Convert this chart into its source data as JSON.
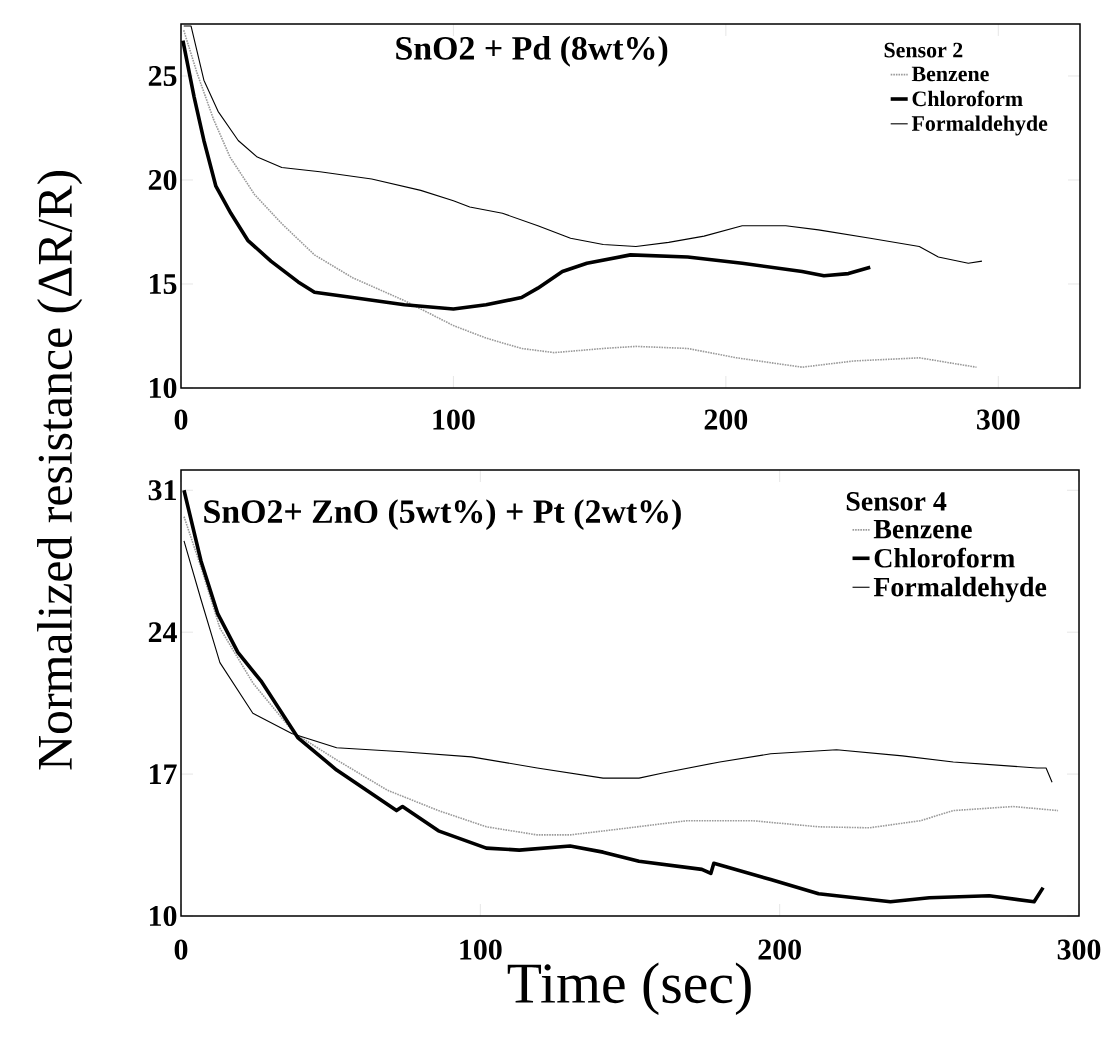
{
  "chart_data": [
    {
      "type": "line",
      "title": "SnO2 + Pd (8wt%)",
      "legend_title": "Sensor 2",
      "ylabel": "Normalized resistance (ΔR/R)",
      "legend": "top right",
      "xlim": [
        0,
        330
      ],
      "xticks": [
        0,
        100,
        200,
        300
      ],
      "ylim": [
        10,
        27.5
      ],
      "yticks": [
        10,
        15,
        20,
        25
      ],
      "series": [
        {
          "name": "Benzene",
          "color": "#9a9a9a",
          "line_style": "dotted",
          "x": [
            1,
            6,
            12,
            18,
            27,
            37,
            49,
            63,
            82,
            100,
            112,
            125,
            137,
            155,
            167,
            186,
            204,
            228,
            247,
            271,
            292
          ],
          "values": [
            27.2,
            25.1,
            22.9,
            21.1,
            19.3,
            17.9,
            16.4,
            15.3,
            14.2,
            13.0,
            12.4,
            11.9,
            11.7,
            11.9,
            12.0,
            11.9,
            11.45,
            11.0,
            11.3,
            11.45,
            11.0
          ]
        },
        {
          "name": "Chloroform",
          "color": "#000000",
          "line_style": "solid",
          "x": [
            0.7,
            4.8,
            8.4,
            12.8,
            18.3,
            24.5,
            33,
            43,
            49,
            63,
            82,
            100,
            112,
            125,
            131,
            140,
            149,
            165,
            186,
            206,
            228,
            236,
            245,
            253
          ],
          "values": [
            26.7,
            24.0,
            21.9,
            19.7,
            18.4,
            17.1,
            16.1,
            15.1,
            14.6,
            14.35,
            14.0,
            13.8,
            14.0,
            14.35,
            14.8,
            15.6,
            16.0,
            16.4,
            16.3,
            16.0,
            15.6,
            15.4,
            15.5,
            15.8
          ]
        },
        {
          "name": "Formaldehyde",
          "color": "#000000",
          "line_style": "solid",
          "x": [
            1,
            3.7,
            8.4,
            13.6,
            21,
            28,
            37,
            51,
            70,
            88,
            100,
            106,
            118,
            131,
            143,
            155,
            167,
            179,
            192,
            206,
            222,
            234,
            253,
            271,
            278,
            289,
            294
          ],
          "values": [
            27.4,
            27.4,
            24.8,
            23.3,
            21.9,
            21.1,
            20.6,
            20.4,
            20.05,
            19.5,
            19.0,
            18.7,
            18.4,
            17.8,
            17.2,
            16.9,
            16.8,
            17.0,
            17.3,
            17.8,
            17.8,
            17.6,
            17.2,
            16.8,
            16.3,
            16.0,
            16.1
          ]
        }
      ]
    },
    {
      "type": "line",
      "title": "SnO2+ ZnO (5wt%) + Pt (2wt%)",
      "legend_title": "Sensor 4",
      "xlabel": "Time (sec)",
      "legend": "top right",
      "xlim": [
        0,
        300
      ],
      "xticks": [
        0,
        100,
        200,
        300
      ],
      "ylim": [
        10,
        32
      ],
      "yticks": [
        10,
        17,
        24,
        31
      ],
      "series": [
        {
          "name": "Benzene",
          "color": "#9a9a9a",
          "line_style": "dotted",
          "x": [
            1,
            6.7,
            13,
            24,
            38,
            52,
            69,
            86,
            102,
            119,
            130,
            147,
            169,
            191,
            213,
            230,
            247,
            258,
            278,
            293
          ],
          "values": [
            29.7,
            27.2,
            24.2,
            21.5,
            19.0,
            17.7,
            16.2,
            15.2,
            14.4,
            14.0,
            14.0,
            14.3,
            14.7,
            14.7,
            14.4,
            14.35,
            14.7,
            15.2,
            15.4,
            15.2
          ]
        },
        {
          "name": "Chloroform",
          "color": "#000000",
          "line_style": "solid",
          "x": [
            1,
            6.7,
            12.3,
            19,
            26.7,
            39,
            52,
            63,
            72,
            74,
            86,
            102,
            113,
            130,
            141,
            153,
            174,
            177,
            178,
            197,
            213,
            237,
            250,
            270,
            285,
            288
          ],
          "values": [
            31.0,
            27.5,
            24.9,
            23.0,
            21.6,
            18.8,
            17.2,
            16.1,
            15.2,
            15.4,
            14.2,
            13.35,
            13.25,
            13.45,
            13.15,
            12.7,
            12.3,
            12.1,
            12.6,
            11.8,
            11.1,
            10.7,
            10.9,
            11.0,
            10.7,
            11.4
          ]
        },
        {
          "name": "Formaldehyde",
          "color": "#000000",
          "line_style": "solid",
          "x": [
            1,
            6.7,
            13,
            24,
            37,
            52,
            74,
            97,
            119,
            141,
            153,
            161,
            180,
            197,
            219,
            241,
            258,
            286,
            289,
            291
          ],
          "values": [
            28.5,
            25.6,
            22.5,
            20.0,
            19.0,
            18.3,
            18.1,
            17.85,
            17.3,
            16.8,
            16.8,
            17.05,
            17.6,
            18.0,
            18.2,
            17.9,
            17.6,
            17.3,
            17.3,
            16.6
          ]
        }
      ]
    }
  ]
}
